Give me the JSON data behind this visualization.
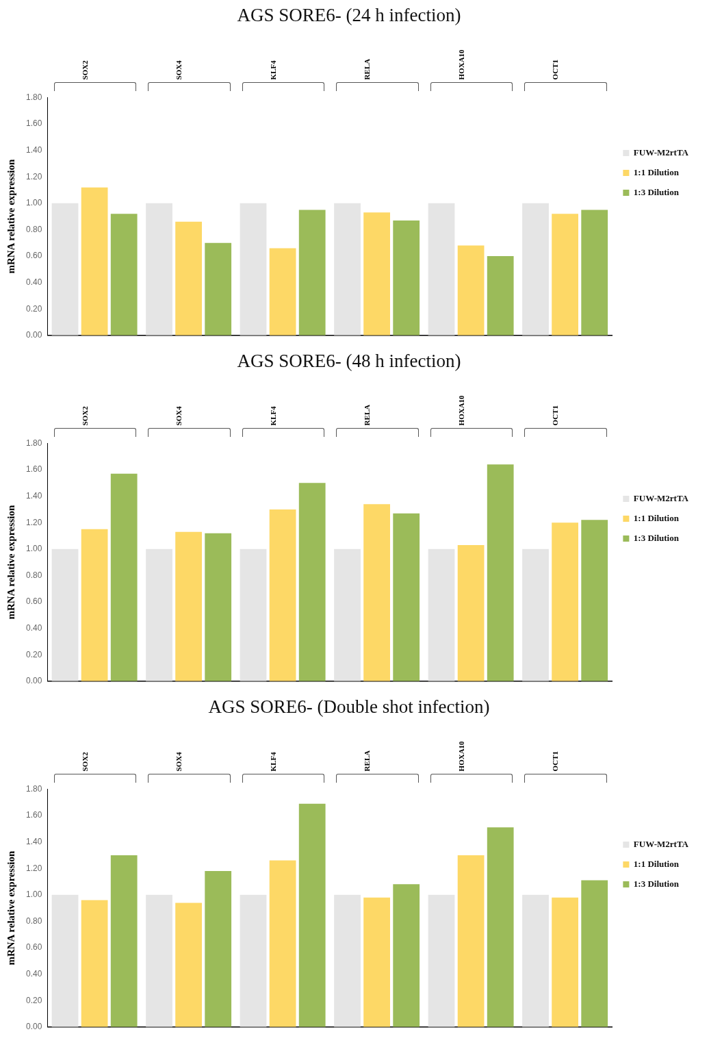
{
  "chart_data": [
    {
      "type": "bar",
      "title": "AGS SORE6- (24 h infection)",
      "ylabel": "mRNA relative expression",
      "categories": [
        "SOX2",
        "SOX4",
        "KLF4",
        "RELA",
        "HOXA10",
        "OCT1"
      ],
      "series": [
        {
          "name": "FUW-M2rtTA",
          "color": "#e5e5e5",
          "values": [
            1.0,
            1.0,
            1.0,
            1.0,
            1.0,
            1.0
          ]
        },
        {
          "name": "1:1 Dilution",
          "color": "#fdd866",
          "values": [
            1.12,
            0.86,
            0.66,
            0.93,
            0.68,
            0.92
          ]
        },
        {
          "name": "1:3 Dilution",
          "color": "#9bbb59",
          "values": [
            0.92,
            0.7,
            0.95,
            0.87,
            0.6,
            0.95
          ]
        }
      ],
      "ylim": [
        0,
        1.8
      ],
      "yticks": [
        {
          "value": 0,
          "label": "0.00"
        },
        {
          "value": 0.2,
          "label": "0.20"
        },
        {
          "value": 0.4,
          "label": "0.40"
        },
        {
          "value": 0.6,
          "label": "0.60"
        },
        {
          "value": 0.8,
          "label": "0.80"
        },
        {
          "value": 1,
          "label": "1.00"
        },
        {
          "value": 1.2,
          "label": "1.20"
        },
        {
          "value": 1.4,
          "label": "1.40"
        },
        {
          "value": 1.6,
          "label": "1.60"
        },
        {
          "value": 1.8,
          "label": "1.80"
        }
      ],
      "grid": false,
      "legend": "right"
    },
    {
      "type": "bar",
      "title": "AGS SORE6- (48 h infection)",
      "ylabel": "mRNA relative expression",
      "categories": [
        "SOX2",
        "SOX4",
        "KLF4",
        "RELA",
        "HOXA10",
        "OCT1"
      ],
      "series": [
        {
          "name": "FUW-M2rtTA",
          "color": "#e5e5e5",
          "values": [
            1.0,
            1.0,
            1.0,
            1.0,
            1.0,
            1.0
          ]
        },
        {
          "name": "1:1 Dilution",
          "color": "#fdd866",
          "values": [
            1.15,
            1.13,
            1.3,
            1.34,
            1.03,
            1.2
          ]
        },
        {
          "name": "1:3 Dilution",
          "color": "#9bbb59",
          "values": [
            1.57,
            1.12,
            1.5,
            1.27,
            1.64,
            1.22
          ]
        }
      ],
      "ylim": [
        0,
        1.8
      ],
      "yticks": [
        {
          "value": 0,
          "label": "0.00"
        },
        {
          "value": 0.2,
          "label": "0.20"
        },
        {
          "value": 0.4,
          "label": "0.40"
        },
        {
          "value": 0.6,
          "label": "0.60"
        },
        {
          "value": 0.8,
          "label": "0.80"
        },
        {
          "value": 1,
          "label": "1.00"
        },
        {
          "value": 1.2,
          "label": "1.20"
        },
        {
          "value": 1.4,
          "label": "1.40"
        },
        {
          "value": 1.6,
          "label": "1.60"
        },
        {
          "value": 1.8,
          "label": "1.80"
        }
      ],
      "grid": false,
      "legend": "right"
    },
    {
      "type": "bar",
      "title": "AGS SORE6- (Double shot infection)",
      "ylabel": "mRNA relative expression",
      "categories": [
        "SOX2",
        "SOX4",
        "KLF4",
        "RELA",
        "HOXA10",
        "OCT1"
      ],
      "series": [
        {
          "name": "FUW-M2rtTA",
          "color": "#e5e5e5",
          "values": [
            1.0,
            1.0,
            1.0,
            1.0,
            1.0,
            1.0
          ]
        },
        {
          "name": "1:1 Dilution",
          "color": "#fdd866",
          "values": [
            0.96,
            0.94,
            1.26,
            0.98,
            1.3,
            0.98
          ]
        },
        {
          "name": "1:3 Dilution",
          "color": "#9bbb59",
          "values": [
            1.3,
            1.18,
            1.69,
            1.08,
            1.51,
            1.11
          ]
        }
      ],
      "ylim": [
        0,
        1.8
      ],
      "yticks": [
        {
          "value": 0,
          "label": "0.00"
        },
        {
          "value": 0.2,
          "label": "0.20"
        },
        {
          "value": 0.4,
          "label": "0.40"
        },
        {
          "value": 0.6,
          "label": "0.60"
        },
        {
          "value": 0.8,
          "label": "0.80"
        },
        {
          "value": 1,
          "label": "1.00"
        },
        {
          "value": 1.2,
          "label": "1.20"
        },
        {
          "value": 1.4,
          "label": "1.40"
        },
        {
          "value": 1.6,
          "label": "1.60"
        },
        {
          "value": 1.8,
          "label": "1.80"
        }
      ],
      "grid": false,
      "legend": "right"
    }
  ]
}
